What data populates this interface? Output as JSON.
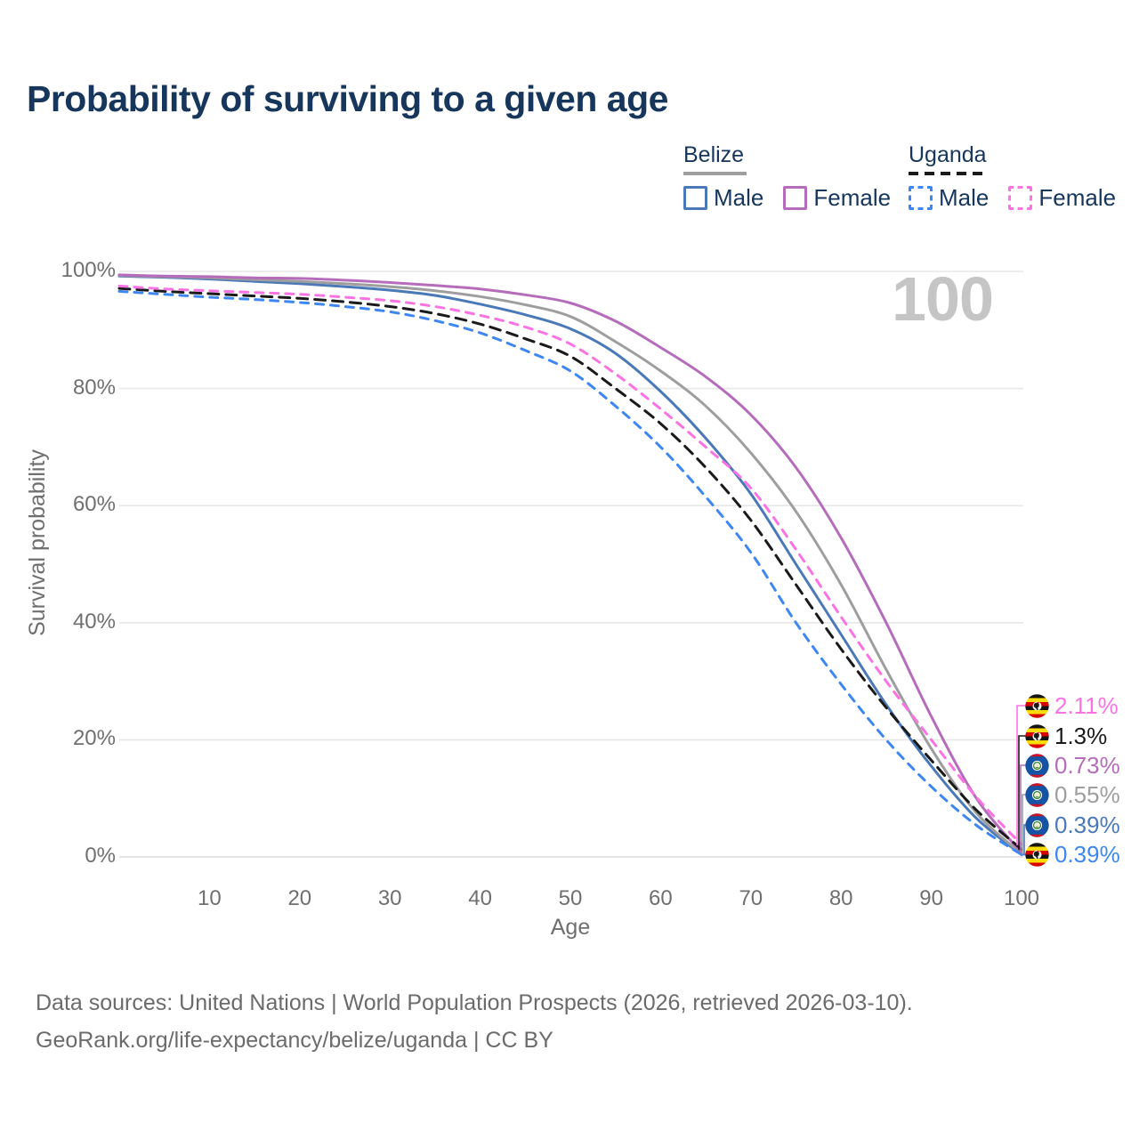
{
  "title": "Probability of surviving to a given age",
  "watermark": "100",
  "legend": {
    "groups": [
      {
        "country": "Belize",
        "line_style": "solid",
        "underline_color": "#9E9E9E",
        "items": [
          {
            "label": "Male",
            "color": "#4A79B8"
          },
          {
            "label": "Female",
            "color": "#B56CBB"
          }
        ]
      },
      {
        "country": "Uganda",
        "line_style": "dashed",
        "underline_color": "#1A1A1A",
        "items": [
          {
            "label": "Male",
            "color": "#3E87F2"
          },
          {
            "label": "Female",
            "color": "#FB73E3"
          }
        ]
      }
    ]
  },
  "chart_data": {
    "type": "line",
    "title": "Probability of surviving to a given age",
    "xlabel": "Age",
    "ylabel": "Survival probability",
    "xlim": [
      0,
      100
    ],
    "ylim": [
      0,
      100
    ],
    "x_ticks": [
      10,
      20,
      30,
      40,
      50,
      60,
      70,
      80,
      90,
      100
    ],
    "y_ticks_percent": [
      100,
      80,
      60,
      40,
      20,
      0
    ],
    "grid": "horizontal",
    "legend_position": "top-right",
    "ages": [
      0,
      5,
      10,
      15,
      20,
      25,
      30,
      35,
      40,
      45,
      50,
      55,
      60,
      65,
      70,
      75,
      80,
      85,
      90,
      95,
      100
    ],
    "series": [
      {
        "name": "Belize Male",
        "country": "Belize",
        "sex": "Male",
        "line": "solid",
        "color": "#4A79B8",
        "end_label": "0.39%",
        "values": [
          99.2,
          99.0,
          98.7,
          98.3,
          97.9,
          97.4,
          96.8,
          95.9,
          94.4,
          92.6,
          90.2,
          86.0,
          79.5,
          71.5,
          62.0,
          50.0,
          38.0,
          26.0,
          15.5,
          6.6,
          0.39
        ]
      },
      {
        "name": "Belize",
        "country": "Belize",
        "sex": "Both",
        "line": "solid",
        "color": "#9E9E9E",
        "end_label": "0.55%",
        "values": [
          99.3,
          99.1,
          98.9,
          98.6,
          98.3,
          97.9,
          97.4,
          96.7,
          95.7,
          94.3,
          92.3,
          88.0,
          83.0,
          77.0,
          69.0,
          59.0,
          46.5,
          32.0,
          18.5,
          7.5,
          0.55
        ]
      },
      {
        "name": "Belize Female",
        "country": "Belize",
        "sex": "Female",
        "line": "solid",
        "color": "#B56CBB",
        "end_label": "0.73%",
        "values": [
          99.4,
          99.2,
          99.1,
          98.9,
          98.8,
          98.5,
          98.1,
          97.6,
          97.0,
          96.0,
          94.6,
          91.5,
          87.0,
          82.0,
          75.5,
          66.5,
          54.5,
          40.0,
          24.0,
          10.0,
          0.73
        ]
      },
      {
        "name": "Uganda Male",
        "country": "Uganda",
        "sex": "Male",
        "line": "dashed",
        "color": "#3E87F2",
        "end_label": "0.39%",
        "values": [
          96.6,
          96.1,
          95.6,
          95.2,
          94.7,
          94.0,
          93.1,
          91.6,
          89.5,
          86.5,
          83.0,
          77.0,
          70.0,
          61.5,
          52.0,
          40.0,
          29.5,
          20.0,
          12.0,
          5.4,
          0.39
        ]
      },
      {
        "name": "Uganda",
        "country": "Uganda",
        "sex": "Both",
        "line": "dashed",
        "color": "#1A1A1A",
        "end_label": "1.3%",
        "values": [
          97.1,
          96.6,
          96.2,
          95.8,
          95.4,
          94.8,
          94.0,
          92.8,
          91.0,
          88.5,
          85.5,
          80.0,
          74.0,
          66.5,
          57.5,
          46.5,
          35.5,
          25.5,
          16.5,
          8.0,
          1.3
        ]
      },
      {
        "name": "Uganda Female",
        "country": "Uganda",
        "sex": "Female",
        "line": "dashed",
        "color": "#FB73E3",
        "end_label": "2.11%",
        "values": [
          97.5,
          97.0,
          96.7,
          96.4,
          96.1,
          95.6,
          95.0,
          94.0,
          92.5,
          90.5,
          87.6,
          82.5,
          76.5,
          70.0,
          63.0,
          52.5,
          41.0,
          30.0,
          20.0,
          10.2,
          2.11
        ]
      }
    ],
    "end_labels": [
      {
        "flag": "uganda",
        "label": "2.11%",
        "value": 2.11,
        "color": "#FB73E3"
      },
      {
        "flag": "uganda",
        "label": "1.3%",
        "value": 1.3,
        "color": "#1A1A1A"
      },
      {
        "flag": "belize",
        "label": "0.73%",
        "value": 0.73,
        "color": "#B56CBB"
      },
      {
        "flag": "belize",
        "label": "0.55%",
        "value": 0.55,
        "color": "#9E9E9E"
      },
      {
        "flag": "belize",
        "label": "0.39%",
        "value": 0.39,
        "color": "#4A79B8"
      },
      {
        "flag": "uganda",
        "label": "0.39%",
        "value": 0.39,
        "color": "#3E87F2"
      }
    ]
  },
  "footer": {
    "line1": "Data sources: United Nations | World Population Prospects (2026, retrieved 2026-03-10).",
    "line2": "GeoRank.org/life-expectancy/belize/uganda | CC BY"
  }
}
